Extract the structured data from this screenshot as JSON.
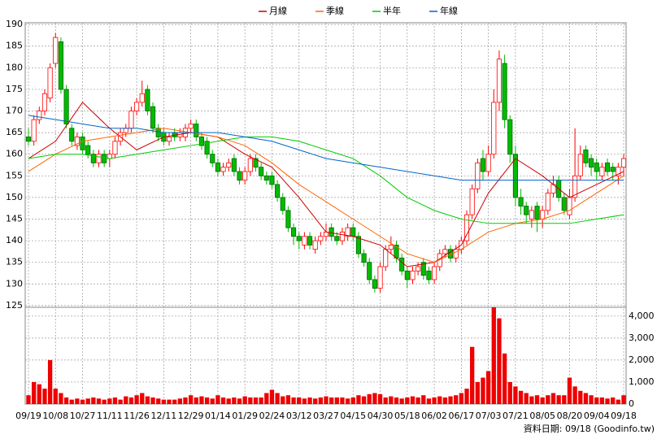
{
  "chart_data": {
    "type": "candlestick",
    "categories": [
      "09/19",
      null,
      null,
      null,
      null,
      "10/08",
      null,
      null,
      null,
      null,
      "10/27",
      null,
      null,
      null,
      null,
      "11/11",
      null,
      null,
      null,
      null,
      "11/26",
      null,
      null,
      null,
      null,
      "12/11",
      null,
      null,
      null,
      null,
      "12/29",
      null,
      null,
      null,
      null,
      "01/14",
      null,
      null,
      null,
      null,
      "01/29",
      null,
      null,
      null,
      null,
      "02/24",
      null,
      null,
      null,
      null,
      "03/12",
      null,
      null,
      null,
      null,
      "03/27",
      null,
      null,
      null,
      null,
      "04/15",
      null,
      null,
      null,
      null,
      "04/30",
      null,
      null,
      null,
      null,
      "05/18",
      null,
      null,
      null,
      null,
      "06/02",
      null,
      null,
      null,
      null,
      "06/17",
      null,
      null,
      null,
      null,
      "07/03",
      null,
      null,
      null,
      null,
      "07/21",
      null,
      null,
      null,
      null,
      "08/05",
      null,
      null,
      null,
      null,
      "08/20",
      null,
      null,
      null,
      null,
      "09/04",
      null,
      null,
      null,
      null,
      "09/18"
    ],
    "open": [
      164,
      163,
      168,
      170,
      173,
      181,
      186,
      175,
      166,
      162,
      164,
      162,
      160,
      158,
      160,
      159,
      160,
      163,
      165,
      166,
      170,
      172,
      175,
      171,
      166,
      165,
      163,
      165,
      164,
      164,
      166,
      167,
      164,
      163,
      160,
      158,
      156,
      157,
      159,
      156,
      154,
      156,
      159,
      157,
      155,
      155,
      153,
      150,
      147,
      143,
      141,
      139,
      141,
      138,
      140,
      141,
      143,
      141,
      140,
      141,
      143,
      141,
      137,
      135,
      131,
      129,
      134,
      138,
      139,
      136,
      133,
      131,
      133,
      135,
      133,
      131,
      134,
      137,
      138,
      136,
      138,
      140,
      146,
      152,
      159,
      156,
      160,
      172,
      181,
      168,
      160,
      150,
      148,
      145,
      148,
      145,
      147,
      151,
      154,
      150,
      146,
      150,
      155,
      161,
      159,
      158,
      155,
      158,
      157,
      155,
      157
    ],
    "high": [
      166,
      169,
      171,
      175,
      181,
      188,
      187,
      176,
      167,
      165,
      165,
      163,
      161,
      161,
      161,
      161,
      164,
      166,
      167,
      171,
      173,
      177,
      176,
      172,
      167,
      166,
      165,
      166,
      166,
      167,
      168,
      168,
      165,
      164,
      161,
      159,
      158,
      159,
      160,
      157,
      157,
      160,
      160,
      158,
      156,
      156,
      154,
      151,
      148,
      144,
      142,
      142,
      142,
      141,
      142,
      144,
      144,
      142,
      143,
      144,
      144,
      142,
      138,
      136,
      132,
      135,
      139,
      141,
      140,
      137,
      134,
      134,
      135,
      136,
      134,
      135,
      138,
      139,
      139,
      139,
      141,
      147,
      153,
      159,
      161,
      162,
      175,
      184,
      183,
      169,
      162,
      152,
      149,
      148,
      149,
      148,
      152,
      155,
      155,
      151,
      152,
      166,
      162,
      162,
      160,
      159,
      158,
      159,
      158,
      158,
      160
    ],
    "low": [
      162,
      162,
      167,
      169,
      172,
      180,
      174,
      166,
      162,
      161,
      160,
      159,
      157,
      157,
      157,
      157,
      159,
      162,
      164,
      165,
      169,
      171,
      169,
      165,
      163,
      162,
      162,
      163,
      163,
      163,
      165,
      163,
      161,
      159,
      157,
      155,
      155,
      156,
      155,
      153,
      153,
      155,
      156,
      154,
      153,
      152,
      149,
      146,
      142,
      139,
      138,
      138,
      138,
      137,
      139,
      140,
      140,
      139,
      139,
      140,
      140,
      136,
      134,
      130,
      128,
      128,
      133,
      137,
      135,
      132,
      129,
      130,
      132,
      131,
      130,
      130,
      133,
      136,
      135,
      135,
      137,
      139,
      145,
      151,
      154,
      155,
      159,
      170,
      166,
      158,
      148,
      146,
      144,
      143,
      142,
      143,
      146,
      150,
      149,
      146,
      145,
      149,
      154,
      157,
      155,
      154,
      154,
      155,
      154,
      153,
      155
    ],
    "close": [
      163,
      168,
      170,
      174,
      180,
      187,
      175,
      167,
      163,
      164,
      161,
      160,
      158,
      160,
      158,
      160,
      163,
      165,
      166,
      170,
      172,
      174,
      170,
      166,
      164,
      163,
      164,
      164,
      165,
      166,
      167,
      164,
      162,
      160,
      158,
      156,
      157,
      158,
      156,
      154,
      156,
      159,
      157,
      155,
      154,
      153,
      150,
      147,
      143,
      141,
      140,
      141,
      139,
      140,
      141,
      142,
      141,
      140,
      142,
      143,
      141,
      137,
      135,
      131,
      129,
      134,
      138,
      139,
      136,
      133,
      131,
      133,
      134,
      132,
      131,
      134,
      137,
      138,
      136,
      138,
      140,
      146,
      152,
      158,
      156,
      160,
      172,
      182,
      168,
      160,
      150,
      148,
      146,
      147,
      145,
      147,
      151,
      153,
      150,
      147,
      150,
      155,
      160,
      158,
      157,
      156,
      157,
      156,
      156,
      157,
      159
    ],
    "up_color": "#ff0000",
    "down_color": "#00bb00",
    "ylim": [
      124.6,
      190.4
    ],
    "yticks": [
      125,
      130,
      135,
      140,
      145,
      150,
      155,
      160,
      165,
      170,
      175,
      180,
      185,
      190
    ],
    "grid": true,
    "averages": [
      {
        "name": "月線",
        "color": "#cc0000",
        "values": [
          159,
          163,
          172,
          166,
          161,
          164,
          165,
          164,
          160,
          157,
          150,
          142,
          141,
          139,
          134,
          135,
          139,
          151,
          159,
          155,
          150,
          153,
          156
        ]
      },
      {
        "name": "季線",
        "color": "#ff6600",
        "values": [
          156,
          160,
          163,
          164,
          165,
          166,
          165,
          164,
          162,
          158,
          153,
          149,
          145,
          141,
          137,
          135,
          138,
          142,
          144,
          145,
          147,
          151,
          155
        ]
      },
      {
        "name": "半年",
        "color": "#00cc00",
        "values": [
          159,
          160,
          160,
          159,
          160,
          161,
          162,
          163,
          164,
          164,
          163,
          161,
          159,
          155,
          150,
          147,
          145,
          144,
          144,
          144,
          144,
          145,
          146
        ]
      },
      {
        "name": "年線",
        "color": "#0066cc",
        "values": [
          169,
          168,
          167,
          166,
          166,
          165,
          165,
          165,
          164,
          163,
          161,
          159,
          158,
          157,
          156,
          155,
          154,
          154,
          154,
          154,
          154,
          154,
          154
        ]
      }
    ],
    "volume": {
      "color": "#ee0000",
      "values": [
        400,
        1000,
        900,
        700,
        2000,
        700,
        500,
        300,
        200,
        250,
        200,
        250,
        300,
        250,
        200,
        250,
        300,
        200,
        350,
        300,
        400,
        500,
        350,
        300,
        250,
        200,
        200,
        200,
        250,
        300,
        400,
        300,
        350,
        300,
        250,
        400,
        300,
        250,
        300,
        250,
        350,
        300,
        300,
        300,
        500,
        650,
        500,
        350,
        400,
        300,
        300,
        250,
        300,
        250,
        300,
        350,
        300,
        300,
        300,
        250,
        300,
        400,
        350,
        450,
        500,
        450,
        300,
        350,
        300,
        250,
        300,
        350,
        300,
        400,
        250,
        300,
        350,
        300,
        350,
        400,
        500,
        700,
        2600,
        1000,
        1200,
        1500,
        4400,
        3900,
        2300,
        1000,
        800,
        600,
        500,
        350,
        400,
        300,
        400,
        500,
        400,
        400,
        1200,
        800,
        600,
        500,
        400,
        300,
        300,
        250,
        300,
        200,
        400
      ],
      "ylim": [
        0,
        4400
      ],
      "yticks": [
        0,
        {
          "value": 1000,
          "label": "1,000"
        },
        {
          "value": 2000,
          "label": "2,000"
        },
        {
          "value": 3000,
          "label": "3,000"
        },
        {
          "value": 4000,
          "label": "4,000"
        }
      ]
    },
    "footnote": "資料日期: 09/18 (Goodinfo.tw)"
  }
}
